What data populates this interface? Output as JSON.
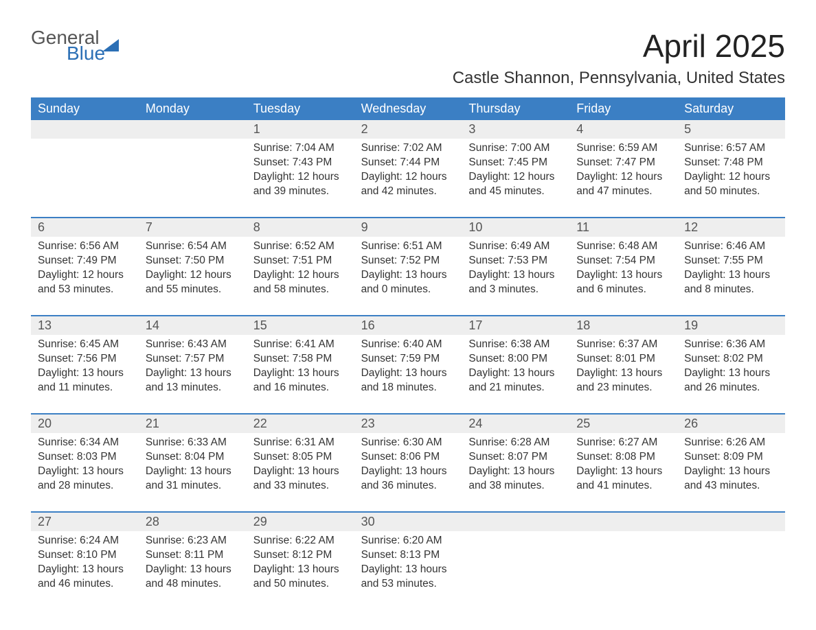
{
  "logo": {
    "word1": "General",
    "word2": "Blue",
    "brand_color": "#2b6fb5"
  },
  "title": "April 2025",
  "location": "Castle Shannon, Pennsylvania, United States",
  "colors": {
    "header_bg": "#3b7fc4",
    "header_text": "#ffffff",
    "daynum_bg": "#eeeeee",
    "text": "#333333",
    "separator": "#3b7fc4"
  },
  "weekdays": [
    "Sunday",
    "Monday",
    "Tuesday",
    "Wednesday",
    "Thursday",
    "Friday",
    "Saturday"
  ],
  "weeks": [
    [
      {
        "n": "",
        "sunrise": "",
        "sunset": "",
        "daylight": ""
      },
      {
        "n": "",
        "sunrise": "",
        "sunset": "",
        "daylight": ""
      },
      {
        "n": "1",
        "sunrise": "7:04 AM",
        "sunset": "7:43 PM",
        "daylight": "12 hours and 39 minutes."
      },
      {
        "n": "2",
        "sunrise": "7:02 AM",
        "sunset": "7:44 PM",
        "daylight": "12 hours and 42 minutes."
      },
      {
        "n": "3",
        "sunrise": "7:00 AM",
        "sunset": "7:45 PM",
        "daylight": "12 hours and 45 minutes."
      },
      {
        "n": "4",
        "sunrise": "6:59 AM",
        "sunset": "7:47 PM",
        "daylight": "12 hours and 47 minutes."
      },
      {
        "n": "5",
        "sunrise": "6:57 AM",
        "sunset": "7:48 PM",
        "daylight": "12 hours and 50 minutes."
      }
    ],
    [
      {
        "n": "6",
        "sunrise": "6:56 AM",
        "sunset": "7:49 PM",
        "daylight": "12 hours and 53 minutes."
      },
      {
        "n": "7",
        "sunrise": "6:54 AM",
        "sunset": "7:50 PM",
        "daylight": "12 hours and 55 minutes."
      },
      {
        "n": "8",
        "sunrise": "6:52 AM",
        "sunset": "7:51 PM",
        "daylight": "12 hours and 58 minutes."
      },
      {
        "n": "9",
        "sunrise": "6:51 AM",
        "sunset": "7:52 PM",
        "daylight": "13 hours and 0 minutes."
      },
      {
        "n": "10",
        "sunrise": "6:49 AM",
        "sunset": "7:53 PM",
        "daylight": "13 hours and 3 minutes."
      },
      {
        "n": "11",
        "sunrise": "6:48 AM",
        "sunset": "7:54 PM",
        "daylight": "13 hours and 6 minutes."
      },
      {
        "n": "12",
        "sunrise": "6:46 AM",
        "sunset": "7:55 PM",
        "daylight": "13 hours and 8 minutes."
      }
    ],
    [
      {
        "n": "13",
        "sunrise": "6:45 AM",
        "sunset": "7:56 PM",
        "daylight": "13 hours and 11 minutes."
      },
      {
        "n": "14",
        "sunrise": "6:43 AM",
        "sunset": "7:57 PM",
        "daylight": "13 hours and 13 minutes."
      },
      {
        "n": "15",
        "sunrise": "6:41 AM",
        "sunset": "7:58 PM",
        "daylight": "13 hours and 16 minutes."
      },
      {
        "n": "16",
        "sunrise": "6:40 AM",
        "sunset": "7:59 PM",
        "daylight": "13 hours and 18 minutes."
      },
      {
        "n": "17",
        "sunrise": "6:38 AM",
        "sunset": "8:00 PM",
        "daylight": "13 hours and 21 minutes."
      },
      {
        "n": "18",
        "sunrise": "6:37 AM",
        "sunset": "8:01 PM",
        "daylight": "13 hours and 23 minutes."
      },
      {
        "n": "19",
        "sunrise": "6:36 AM",
        "sunset": "8:02 PM",
        "daylight": "13 hours and 26 minutes."
      }
    ],
    [
      {
        "n": "20",
        "sunrise": "6:34 AM",
        "sunset": "8:03 PM",
        "daylight": "13 hours and 28 minutes."
      },
      {
        "n": "21",
        "sunrise": "6:33 AM",
        "sunset": "8:04 PM",
        "daylight": "13 hours and 31 minutes."
      },
      {
        "n": "22",
        "sunrise": "6:31 AM",
        "sunset": "8:05 PM",
        "daylight": "13 hours and 33 minutes."
      },
      {
        "n": "23",
        "sunrise": "6:30 AM",
        "sunset": "8:06 PM",
        "daylight": "13 hours and 36 minutes."
      },
      {
        "n": "24",
        "sunrise": "6:28 AM",
        "sunset": "8:07 PM",
        "daylight": "13 hours and 38 minutes."
      },
      {
        "n": "25",
        "sunrise": "6:27 AM",
        "sunset": "8:08 PM",
        "daylight": "13 hours and 41 minutes."
      },
      {
        "n": "26",
        "sunrise": "6:26 AM",
        "sunset": "8:09 PM",
        "daylight": "13 hours and 43 minutes."
      }
    ],
    [
      {
        "n": "27",
        "sunrise": "6:24 AM",
        "sunset": "8:10 PM",
        "daylight": "13 hours and 46 minutes."
      },
      {
        "n": "28",
        "sunrise": "6:23 AM",
        "sunset": "8:11 PM",
        "daylight": "13 hours and 48 minutes."
      },
      {
        "n": "29",
        "sunrise": "6:22 AM",
        "sunset": "8:12 PM",
        "daylight": "13 hours and 50 minutes."
      },
      {
        "n": "30",
        "sunrise": "6:20 AM",
        "sunset": "8:13 PM",
        "daylight": "13 hours and 53 minutes."
      },
      {
        "n": "",
        "sunrise": "",
        "sunset": "",
        "daylight": ""
      },
      {
        "n": "",
        "sunrise": "",
        "sunset": "",
        "daylight": ""
      },
      {
        "n": "",
        "sunrise": "",
        "sunset": "",
        "daylight": ""
      }
    ]
  ],
  "labels": {
    "sunrise": "Sunrise: ",
    "sunset": "Sunset: ",
    "daylight": "Daylight: "
  }
}
